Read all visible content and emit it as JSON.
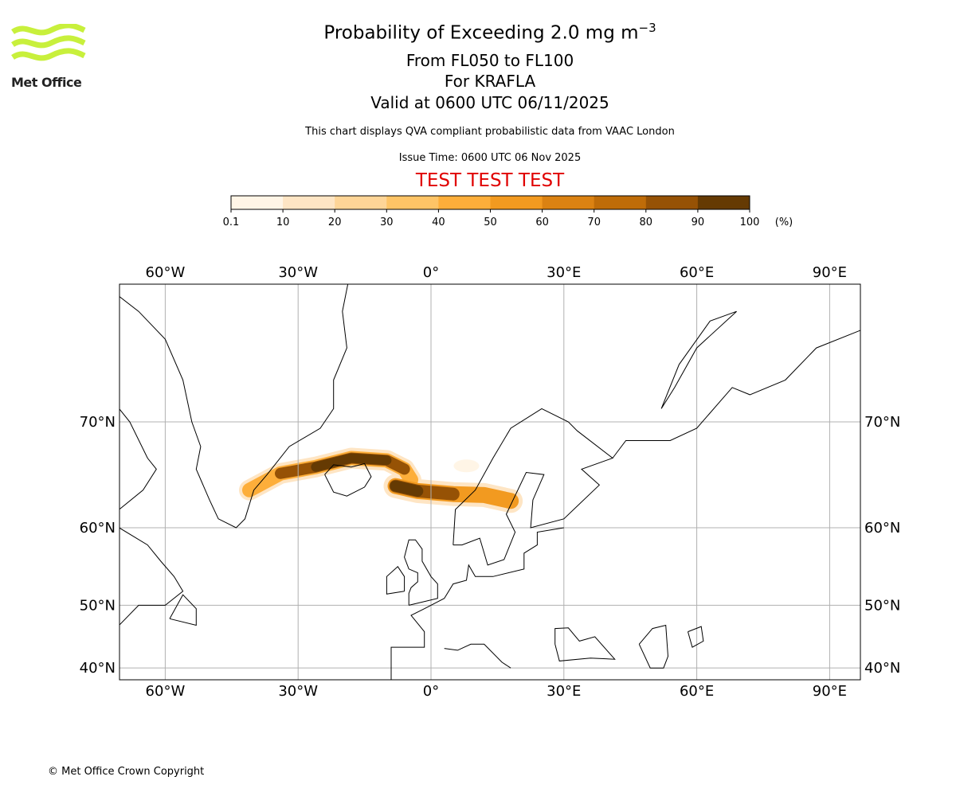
{
  "header": {
    "title_main": "Probability of Exceeding 2.0 mg m",
    "title_sup": "−3",
    "flight_levels": "From FL050 to FL100",
    "volcano": "For KRAFLA",
    "valid": "Valid at 0600 UTC 06/11/2025",
    "description": "This chart displays QVA compliant probabilistic data from VAAC London",
    "issue_time": "Issue Time: 0600 UTC 06 Nov 2025",
    "test_banner": "TEST TEST TEST"
  },
  "logo": {
    "text": "Met Office",
    "color": "#c8f03c"
  },
  "footer": {
    "copyright": "© Met Office Crown Copyright"
  },
  "chart_data": {
    "type": "heatmap",
    "title": "Probability of Exceeding 2.0 mg m−3",
    "colorbar": {
      "ticks": [
        "0.1",
        "10",
        "20",
        "30",
        "40",
        "50",
        "60",
        "70",
        "80",
        "90",
        "100"
      ],
      "unit": "(%)",
      "colors": [
        "#fff5e6",
        "#fee5c4",
        "#fed597",
        "#fec466",
        "#fdae3a",
        "#f29a20",
        "#db8212",
        "#bf6c08",
        "#965205",
        "#653a03"
      ]
    },
    "x_ticks_top": [
      "60°W",
      "30°W",
      "0°",
      "30°E",
      "60°E",
      "90°E"
    ],
    "x_ticks_bottom": [
      "60°W",
      "30°W",
      "0°",
      "30°E",
      "60°E",
      "90°E"
    ],
    "x_tick_values": [
      -60,
      -30,
      0,
      30,
      60,
      90
    ],
    "y_ticks_left": [
      "70°N",
      "60°N",
      "50°N",
      "40°N"
    ],
    "y_ticks_right": [
      "70°N",
      "60°N",
      "50°N",
      "40°N"
    ],
    "y_tick_values": [
      70,
      60,
      50,
      40
    ],
    "lon_range": [
      -70.4,
      96.8
    ],
    "lat_range": [
      38,
      79.6
    ],
    "grid": true,
    "plume_center": {
      "lon": -16.8,
      "lat": 65.7
    }
  }
}
